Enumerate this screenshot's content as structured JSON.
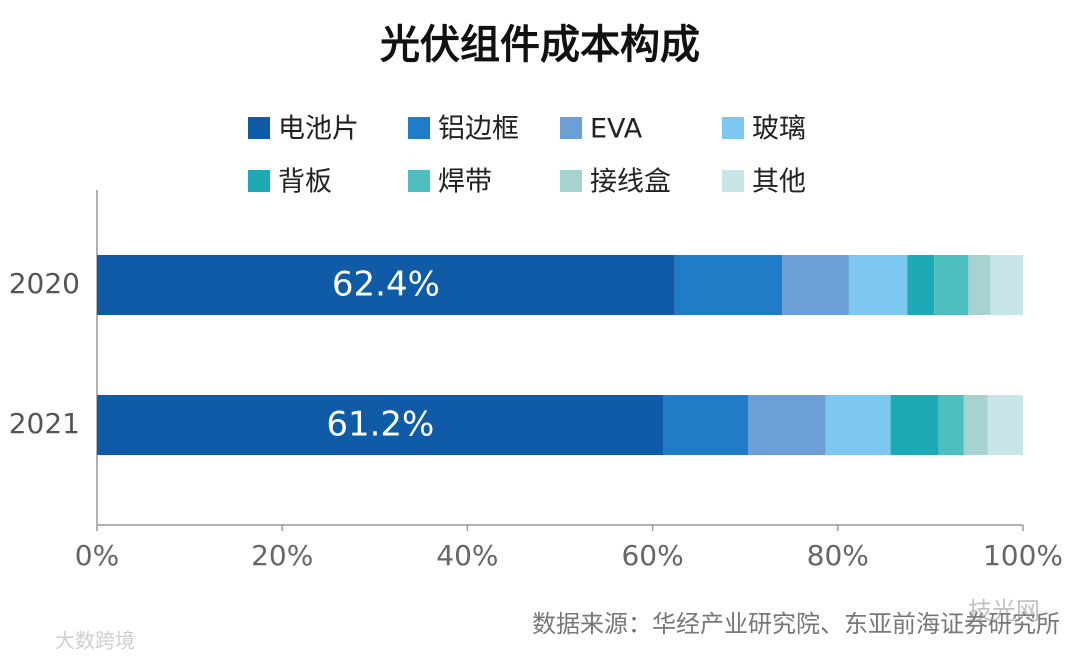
{
  "chart_data": {
    "type": "stacked_barh",
    "title": "光伏组件成本构成",
    "categories": [
      "2020",
      "2021"
    ],
    "series": [
      {
        "name": "电池片",
        "color": "#0f5ba8",
        "values": [
          62.4,
          61.2
        ],
        "value_labels": [
          "62.4%",
          "61.2%"
        ]
      },
      {
        "name": "铝边框",
        "color": "#1f7dc8",
        "values": [
          11.6,
          9.1
        ]
      },
      {
        "name": "EVA",
        "color": "#6b9fd6",
        "values": [
          7.2,
          8.4
        ]
      },
      {
        "name": "玻璃",
        "color": "#7cc8f0",
        "values": [
          6.3,
          7.0
        ]
      },
      {
        "name": "背板",
        "color": "#1eaab5",
        "values": [
          2.9,
          5.2
        ]
      },
      {
        "name": "焊带",
        "color": "#4dbfbf",
        "values": [
          3.7,
          2.7
        ]
      },
      {
        "name": "接线盒",
        "color": "#a6d2cf",
        "values": [
          2.4,
          2.6
        ]
      },
      {
        "name": "其他",
        "color": "#c8e6ea",
        "values": [
          3.5,
          3.8
        ]
      }
    ],
    "xlim": [
      0,
      100
    ],
    "xticks": [
      {
        "value": 0,
        "label": "0%"
      },
      {
        "value": 20,
        "label": "20%"
      },
      {
        "value": 40,
        "label": "40%"
      },
      {
        "value": 60,
        "label": "60%"
      },
      {
        "value": 80,
        "label": "80%"
      },
      {
        "value": 100,
        "label": "100%"
      }
    ],
    "source": "数据来源：华经产业研究院、东亚前海证券研究所",
    "watermarks": [
      "技光网",
      "大数跨境"
    ]
  }
}
